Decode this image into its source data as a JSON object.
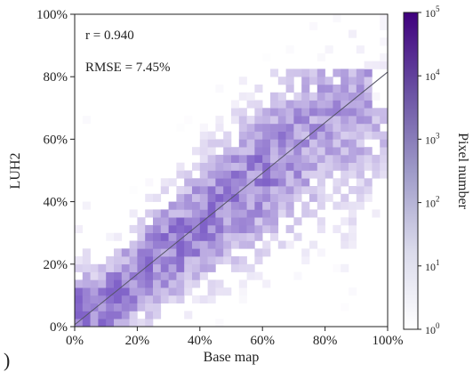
{
  "chart_data": {
    "type": "heatmap",
    "subtype": "2d-density-scatter",
    "title": "",
    "xlabel": "Base map",
    "ylabel": "LUH2",
    "xlim": [
      0,
      100
    ],
    "ylim": [
      0,
      100
    ],
    "x_ticks": [
      0,
      20,
      40,
      60,
      80,
      100
    ],
    "x_tick_labels": [
      "0%",
      "20%",
      "40%",
      "60%",
      "80%",
      "100%"
    ],
    "y_ticks": [
      0,
      20,
      40,
      60,
      80,
      100
    ],
    "y_tick_labels": [
      "0%",
      "20%",
      "40%",
      "60%",
      "80%",
      "100%"
    ],
    "grid": false,
    "annotations": [
      "r = 0.940",
      "RMSE = 7.45%"
    ],
    "fit_line": {
      "x": [
        0,
        100
      ],
      "y": [
        0.6,
        81.5
      ]
    },
    "colorbar": {
      "label": "Pixel number",
      "scale": "log",
      "range": [
        1,
        100000
      ],
      "ticks": [
        {
          "base": "10",
          "exp": "0"
        },
        {
          "base": "10",
          "exp": "1"
        },
        {
          "base": "10",
          "exp": "2"
        },
        {
          "base": "10",
          "exp": "3"
        },
        {
          "base": "10",
          "exp": "4"
        },
        {
          "base": "10",
          "exp": "5"
        }
      ],
      "color_low": "#ffffff",
      "color_high": "#3f007d"
    },
    "panel_mark": ")"
  }
}
